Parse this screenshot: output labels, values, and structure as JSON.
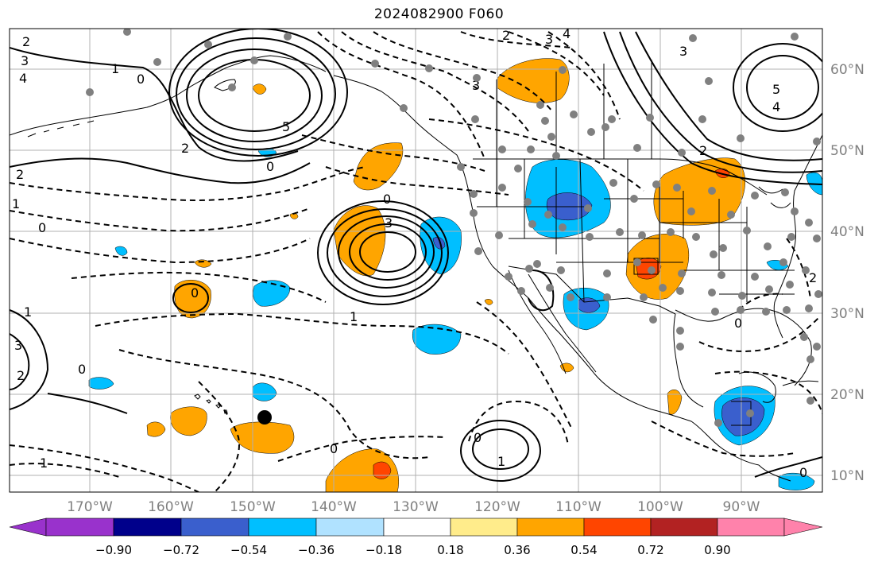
{
  "title": "2024082900 F060",
  "longitude_labels": [
    "170°W",
    "160°W",
    "150°W",
    "140°W",
    "130°W",
    "120°W",
    "110°W",
    "100°W",
    "90°W"
  ],
  "latitude_labels": [
    "60°N",
    "50°N",
    "40°N",
    "30°N",
    "20°N",
    "10°N"
  ],
  "colorbar": {
    "tick_labels": [
      "−0.90",
      "−0.72",
      "−0.54",
      "−0.36",
      "−0.18",
      "0.18",
      "0.36",
      "0.54",
      "0.72",
      "0.90"
    ],
    "colors": [
      "#9932cc",
      "#00008b",
      "#3a5fcd",
      "#00bfff",
      "#b0e2ff",
      "#ffffff",
      "#ffec8b",
      "#ffa500",
      "#ff4500",
      "#b22222",
      "#ff82ab"
    ]
  },
  "contour_labels": [
    "2",
    "3",
    "4",
    "2",
    "0",
    "0",
    "5",
    "2",
    "3",
    "2",
    "3",
    "4",
    "3",
    "1",
    "2",
    "0",
    "0",
    "1",
    "3",
    "0",
    "1",
    "1",
    "0",
    "1",
    "1",
    "0",
    "5",
    "4",
    "3",
    "2",
    "2",
    "0",
    "0",
    "0"
  ],
  "colors": {
    "purple": "#9932cc",
    "navy": "#00008b",
    "blue": "#3a5fcd",
    "cyan": "#00bfff",
    "lightblue": "#b0e2ff",
    "yellow": "#ffec8b",
    "orange": "#ffa500",
    "red": "#ff4500",
    "darkred": "#b22222",
    "pink": "#ff82ab",
    "station": "#808080",
    "grid": "#b0b0b0",
    "label_gray": "#808080"
  }
}
